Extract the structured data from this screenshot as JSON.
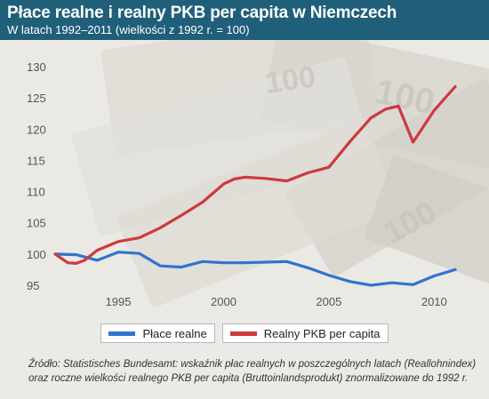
{
  "header": {
    "title": "Płace realne i realny PKB per capita w Niemczech",
    "subtitle": "W latach 1992–2011 (wielkości z 1992 r. = 100)"
  },
  "chart_data": {
    "type": "line",
    "title": "Płace realne i realny PKB per capita w Niemczech",
    "subtitle": "W latach 1992–2011 (wielkości z 1992 r. = 100)",
    "xlabel": "",
    "ylabel": "",
    "xlim": [
      1992,
      2011.5
    ],
    "ylim": [
      93,
      131
    ],
    "x_ticks": [
      1995,
      2000,
      2005,
      2010
    ],
    "y_ticks": [
      95,
      100,
      105,
      110,
      115,
      120,
      125,
      130
    ],
    "grid": false,
    "legend_position": "bottom",
    "series": [
      {
        "name": "Płace realne",
        "color": "#2f74d0",
        "x": [
          1992,
          1993,
          1994,
          1995,
          1996,
          1997,
          1998,
          1999,
          2000,
          2001,
          2002,
          2003,
          2004,
          2005,
          2006,
          2007,
          2008,
          2009,
          2010,
          2011
        ],
        "values": [
          100,
          99.9,
          99,
          100.3,
          100.1,
          98.1,
          97.9,
          98.8,
          98.6,
          98.6,
          98.7,
          98.8,
          97.8,
          96.6,
          95.6,
          95.0,
          95.4,
          95.1,
          96.5,
          97.5
        ]
      },
      {
        "name": "Realny PKB per capita",
        "color": "#cc3a3f",
        "x": [
          1992,
          1992.6,
          1993,
          1993.4,
          1994,
          1995,
          1996,
          1997,
          1998,
          1999,
          2000,
          2000.5,
          2001,
          2002,
          2003,
          2004,
          2005,
          2006,
          2007,
          2007.7,
          2008.3,
          2009,
          2010,
          2011
        ],
        "values": [
          100,
          98.6,
          98.5,
          99.0,
          100.6,
          102,
          102.6,
          104.2,
          106.2,
          108.3,
          111.2,
          112.0,
          112.3,
          112.1,
          111.7,
          113.0,
          113.9,
          118.0,
          121.8,
          123.2,
          123.7,
          117.9,
          123.0,
          126.8
        ]
      }
    ]
  },
  "legend": {
    "items": [
      {
        "label": "Płace realne",
        "color": "#2f74d0"
      },
      {
        "label": "Realny PKB per capita",
        "color": "#cc3a3f"
      }
    ]
  },
  "source": {
    "label": "Źródło:",
    "line1": "Statistisches Bundesamt: wskaźnik płac realnych w poszczególnych latach (Reallohnindex)",
    "line2": "oraz roczne wielkości realnego PKB per capita (Bruttoinlandsprodukt) znormalizowane do 1992 r."
  },
  "colors": {
    "header_bg": "#1f5f79",
    "page_bg": "#eceae6",
    "axis_text": "#555555"
  }
}
